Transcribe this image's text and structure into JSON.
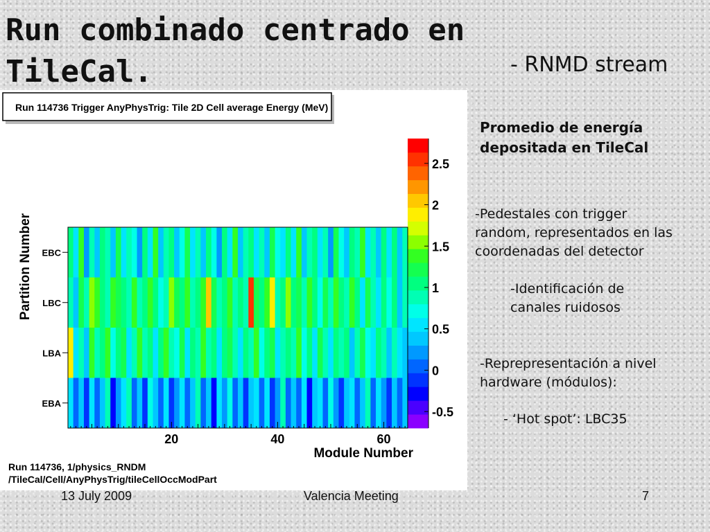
{
  "slide": {
    "title": "Run combinado centrado en TileCal.",
    "subtitle": "- RNMD stream",
    "side_heading": "Promedio de energía depositada en TileCal",
    "notes": [
      "-Pedestales con trigger random, representados en las coordenadas del detector",
      "-Identificación de canales ruidosos",
      "-Reprepresentación a nivel hardware (módulos):",
      "- ‘Hot spot’: LBC35"
    ],
    "footer": {
      "date": "13 July 2009",
      "meeting": "Valencia Meeting",
      "page": "7"
    }
  },
  "chart_data": {
    "type": "heatmap",
    "title": "Run 114736 Trigger AnyPhysTrig: Tile 2D Cell average Energy (MeV)",
    "xlabel": "Module Number",
    "ylabel": "Partition Number",
    "xlim": [
      1,
      64
    ],
    "x_ticks": [
      20,
      40,
      60
    ],
    "y_categories": [
      "EBC",
      "LBC",
      "LBA",
      "EBA"
    ],
    "color_scale": {
      "min": -0.7,
      "max": 2.8,
      "ticks": [
        -0.5,
        0,
        0.5,
        1,
        1.5,
        2,
        2.5
      ]
    },
    "values": {
      "EBC": [
        1.1,
        0.6,
        1.3,
        0.2,
        0.9,
        0.4,
        1.0,
        0.8,
        0.3,
        1.2,
        0.5,
        0.9,
        0.7,
        0.2,
        1.1,
        0.6,
        1.4,
        0.4,
        0.8,
        1.0,
        0.3,
        0.7,
        1.2,
        0.5,
        0.9,
        0.4,
        1.1,
        0.7,
        0.2,
        1.0,
        0.6,
        1.3,
        0.4,
        0.8,
        1.1,
        0.5,
        0.9,
        0.3,
        1.2,
        0.7,
        0.5,
        1.0,
        0.6,
        1.4,
        0.3,
        0.8,
        1.1,
        0.5,
        0.9,
        0.2,
        1.2,
        0.7,
        0.4,
        1.0,
        0.8,
        1.3,
        0.5,
        0.9,
        0.3,
        1.1,
        0.6,
        1.0,
        0.4,
        0.8
      ],
      "LBC": [
        0.9,
        0.4,
        1.2,
        0.8,
        1.5,
        1.3,
        1.1,
        0.9,
        1.4,
        1.2,
        1.0,
        0.8,
        1.3,
        0.9,
        1.1,
        1.4,
        1.0,
        0.7,
        0.9,
        1.5,
        1.2,
        1.0,
        1.3,
        0.8,
        1.1,
        1.4,
        2.0,
        1.2,
        0.9,
        1.0,
        1.3,
        0.8,
        1.1,
        0.9,
        2.6,
        1.2,
        1.0,
        1.4,
        1.9,
        0.8,
        1.1,
        1.5,
        1.0,
        1.2,
        0.9,
        1.3,
        1.0,
        0.7,
        1.2,
        0.9,
        1.4,
        1.1,
        0.8,
        1.3,
        1.0,
        0.6,
        1.2,
        0.9,
        0.5,
        1.1,
        0.7,
        1.0,
        0.4,
        0.8
      ],
      "LBA": [
        1.8,
        0.6,
        0.9,
        0.4,
        1.3,
        0.8,
        1.1,
        1.4,
        0.7,
        1.0,
        1.2,
        0.5,
        0.9,
        1.3,
        0.8,
        1.1,
        0.6,
        1.0,
        1.4,
        0.9,
        0.7,
        1.2,
        0.5,
        1.0,
        0.8,
        1.3,
        0.9,
        1.1,
        0.6,
        1.0,
        1.2,
        0.8,
        0.5,
        1.1,
        0.9,
        1.3,
        0.7,
        1.0,
        1.2,
        0.6,
        0.9,
        1.1,
        0.8,
        1.3,
        0.7,
        1.0,
        0.5,
        1.2,
        0.9,
        0.6,
        1.1,
        0.8,
        1.0,
        0.4,
        0.9,
        1.2,
        0.7,
        0.5,
        1.0,
        0.8,
        0.3,
        0.9,
        0.6,
        0.4
      ],
      "EBA": [
        0.5,
        0.0,
        0.3,
        -0.2,
        0.6,
        0.1,
        0.4,
        0.8,
        -0.3,
        0.2,
        0.5,
        0.9,
        0.0,
        0.3,
        -0.1,
        0.7,
        0.4,
        0.1,
        0.5,
        -0.2,
        0.2,
        0.6,
        0.0,
        0.4,
        0.8,
        0.1,
        0.3,
        -0.3,
        0.5,
        0.2,
        0.7,
        0.0,
        0.4,
        -0.1,
        0.3,
        0.6,
        0.1,
        0.5,
        -0.2,
        0.2,
        0.8,
        0.0,
        0.4,
        0.1,
        0.6,
        -0.3,
        0.3,
        0.5,
        0.0,
        0.7,
        0.2,
        -0.1,
        0.4,
        0.6,
        0.1,
        0.3,
        0.9,
        0.0,
        0.5,
        0.2,
        -0.2,
        0.4,
        0.1,
        0.3
      ]
    },
    "footnote": [
      "Run 114736, 1/physics_RNDM",
      "/TileCal/Cell/AnyPhysTrig/tileCellOccModPart"
    ]
  }
}
